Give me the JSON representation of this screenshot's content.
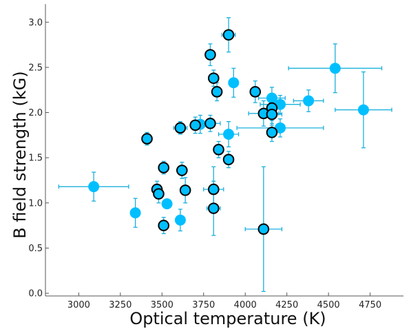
{
  "chart_data": {
    "type": "scatter",
    "title": "",
    "xlabel": "Optical temperature (K)",
    "ylabel": "B field strength (kG)",
    "xlim": [
      2800,
      4950
    ],
    "ylim": [
      -0.03,
      3.2
    ],
    "xticks": [
      3000,
      3250,
      3500,
      3750,
      4000,
      4250,
      4500,
      4750
    ],
    "xtick_labels": [
      "3000",
      "3250",
      "3500",
      "3750",
      "4000",
      "4250",
      "4500",
      "4750"
    ],
    "yticks": [
      0.0,
      0.5,
      1.0,
      1.5,
      2.0,
      2.5,
      3.0
    ],
    "ytick_labels": [
      "0.0",
      "0.5",
      "1.0",
      "1.5",
      "2.0",
      "2.5",
      "3.0"
    ],
    "grid": false,
    "colors": {
      "point": "#00bfff",
      "errorbar": "#1ab0dd",
      "outline": "#000000"
    },
    "series": [
      {
        "style": "filled-no-outline",
        "points": [
          {
            "x": 3090,
            "y": 1.18,
            "xerr": 210,
            "yerr": 0.16
          },
          {
            "x": 3340,
            "y": 0.89,
            "xerr": 0,
            "yerr": 0.16
          },
          {
            "x": 3530,
            "y": 0.99,
            "xerr": 0,
            "yerr": 0
          },
          {
            "x": 3610,
            "y": 0.81,
            "xerr": 0,
            "yerr": 0.12
          },
          {
            "x": 3730,
            "y": 1.87,
            "xerr": 50,
            "yerr": 0.1
          },
          {
            "x": 3900,
            "y": 1.76,
            "xerr": 60,
            "yerr": 0.14
          },
          {
            "x": 3930,
            "y": 2.33,
            "xerr": 0,
            "yerr": 0.16
          },
          {
            "x": 4160,
            "y": 2.16,
            "xerr": 80,
            "yerr": 0.12
          },
          {
            "x": 4210,
            "y": 2.09,
            "xerr": 120,
            "yerr": 0.1
          },
          {
            "x": 4210,
            "y": 1.83,
            "xerr": 260,
            "yerr": 0.1
          },
          {
            "x": 4380,
            "y": 2.13,
            "xerr": 90,
            "yerr": 0.12
          },
          {
            "x": 4540,
            "y": 2.49,
            "xerr": 280,
            "yerr": 0.27
          },
          {
            "x": 4710,
            "y": 2.03,
            "xerr": 170,
            "yerr": 0.42
          }
        ]
      },
      {
        "style": "filled-black-outline",
        "points": [
          {
            "x": 3410,
            "y": 1.71,
            "xerr": 30,
            "yerr": 0.07
          },
          {
            "x": 3470,
            "y": 1.15,
            "xerr": 0,
            "yerr": 0.09
          },
          {
            "x": 3480,
            "y": 1.1,
            "xerr": 0,
            "yerr": 0.1
          },
          {
            "x": 3510,
            "y": 1.39,
            "xerr": 0,
            "yerr": 0.07
          },
          {
            "x": 3510,
            "y": 0.75,
            "xerr": 0,
            "yerr": 0.09
          },
          {
            "x": 3610,
            "y": 1.83,
            "xerr": 40,
            "yerr": 0.07
          },
          {
            "x": 3620,
            "y": 1.36,
            "xerr": 0,
            "yerr": 0.09
          },
          {
            "x": 3640,
            "y": 1.14,
            "xerr": 30,
            "yerr": 0.14
          },
          {
            "x": 3700,
            "y": 1.86,
            "xerr": 0,
            "yerr": 0.09
          },
          {
            "x": 3790,
            "y": 2.64,
            "xerr": 0,
            "yerr": 0.12
          },
          {
            "x": 3790,
            "y": 1.88,
            "xerr": 60,
            "yerr": 0.09
          },
          {
            "x": 3810,
            "y": 2.38,
            "xerr": 0,
            "yerr": 0.09
          },
          {
            "x": 3810,
            "y": 1.15,
            "xerr": 60,
            "yerr": 0.25
          },
          {
            "x": 3810,
            "y": 0.94,
            "xerr": 40,
            "yerr": 0.3
          },
          {
            "x": 3830,
            "y": 2.23,
            "xerr": 0,
            "yerr": 0.1
          },
          {
            "x": 3840,
            "y": 1.59,
            "xerr": 0,
            "yerr": 0.09
          },
          {
            "x": 3900,
            "y": 2.86,
            "xerr": 40,
            "yerr": 0.19
          },
          {
            "x": 3900,
            "y": 1.48,
            "xerr": 0,
            "yerr": 0.09
          },
          {
            "x": 4060,
            "y": 2.23,
            "xerr": 0,
            "yerr": 0.12
          },
          {
            "x": 4110,
            "y": 1.99,
            "xerr": 90,
            "yerr": 0.14
          },
          {
            "x": 4110,
            "y": 0.71,
            "xerr": 110,
            "yerr": 0.69
          },
          {
            "x": 4160,
            "y": 2.05,
            "xerr": 0,
            "yerr": 0.14
          },
          {
            "x": 4160,
            "y": 1.98,
            "xerr": 60,
            "yerr": 0.12
          },
          {
            "x": 4160,
            "y": 1.78,
            "xerr": 0,
            "yerr": 0.1
          }
        ]
      }
    ]
  }
}
